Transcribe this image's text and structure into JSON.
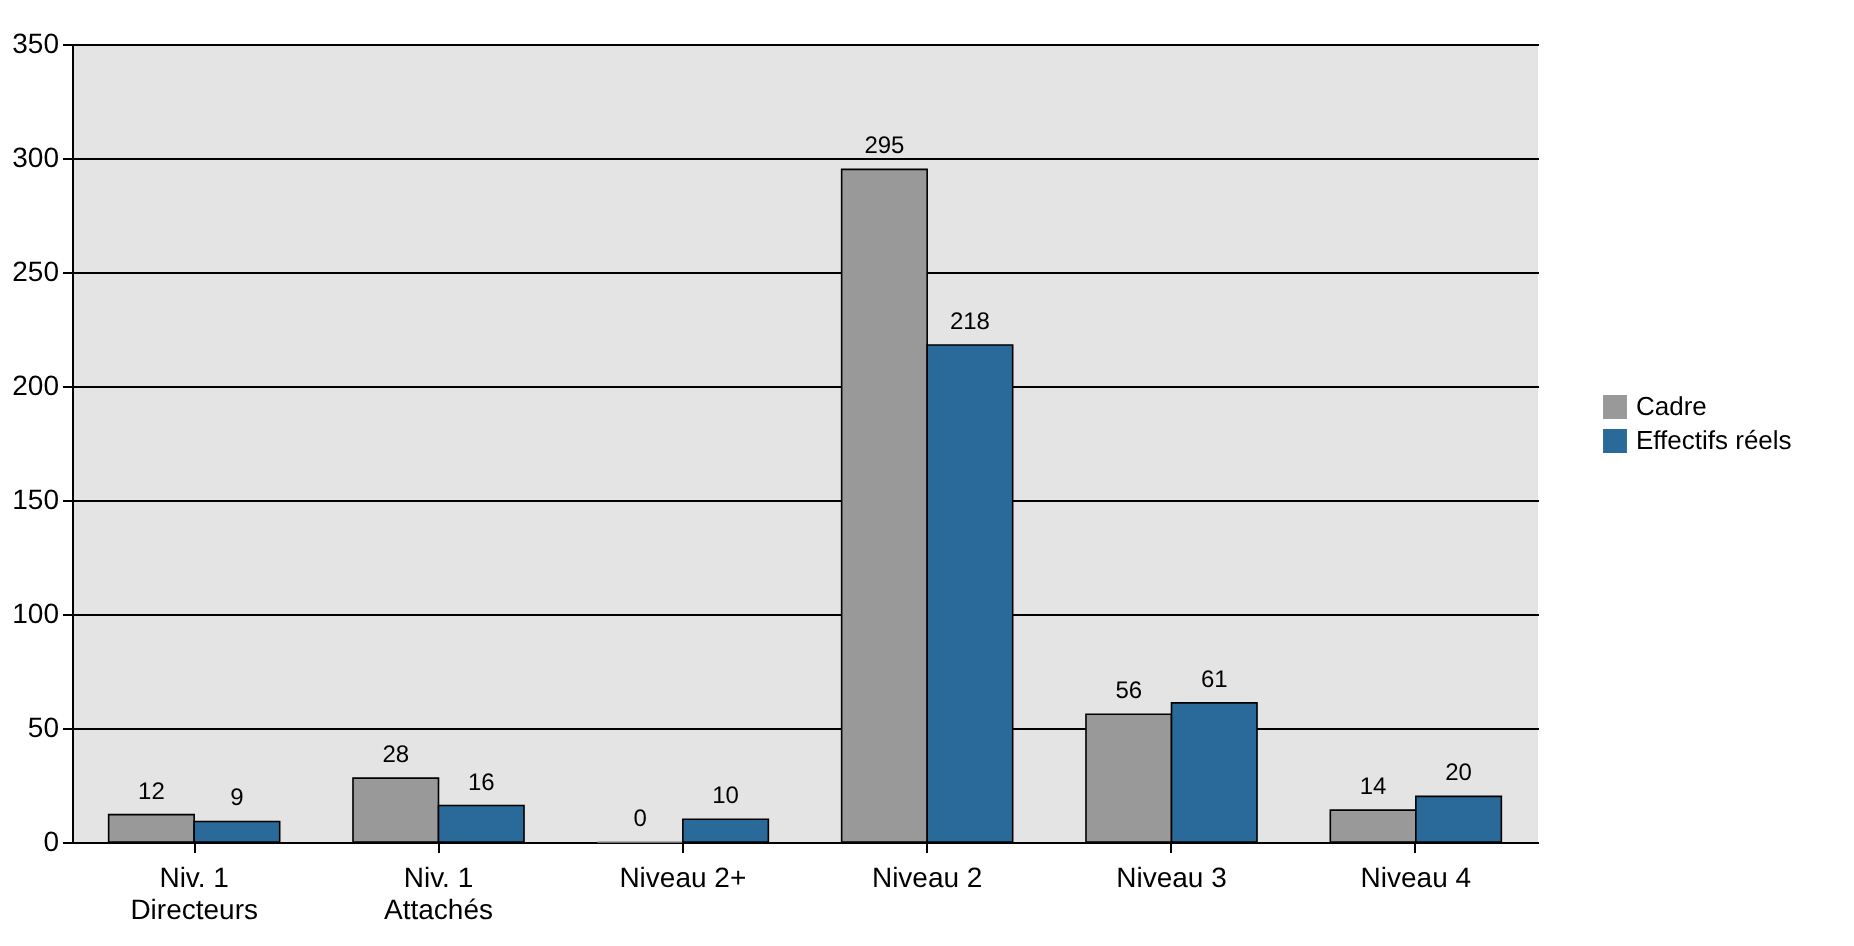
{
  "chart_data": {
    "type": "bar",
    "categories": [
      "Niv. 1\nDirecteurs",
      "Niv. 1\nAttachés",
      "Niveau 2+",
      "Niveau 2",
      "Niveau 3",
      "Niveau 4"
    ],
    "series": [
      {
        "name": "Cadre",
        "color": "#999999",
        "values": [
          12,
          28,
          0,
          295,
          56,
          14
        ]
      },
      {
        "name": "Effectifs réels",
        "color": "#2a6a9a",
        "values": [
          9,
          16,
          10,
          218,
          61,
          20
        ]
      }
    ],
    "ylim": [
      0,
      350
    ],
    "yticks": [
      0,
      50,
      100,
      150,
      200,
      250,
      300,
      350
    ],
    "grid": "y",
    "legend": "right",
    "data_labels": true
  }
}
